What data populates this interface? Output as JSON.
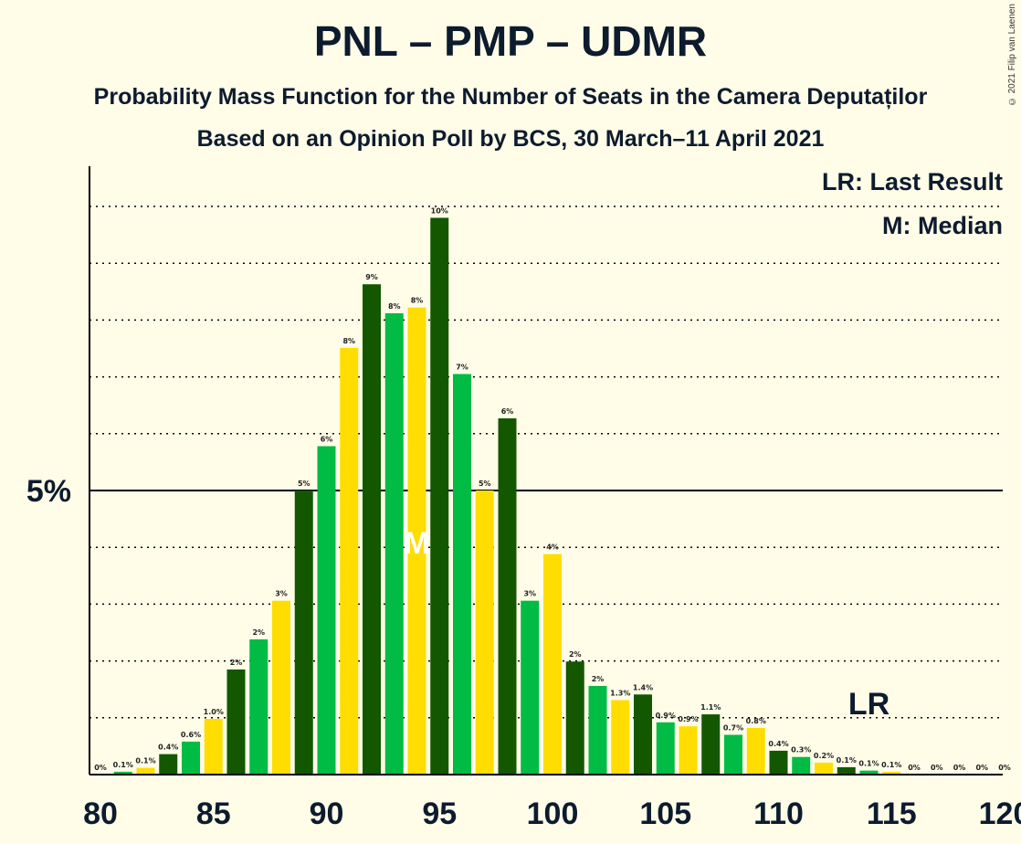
{
  "title": "PNL – PMP – UDMR",
  "subtitle": "Probability Mass Function for the Number of Seats in the Camera Deputaților",
  "subtitle2": "Based on an Opinion Poll by BCS, 30 March–11 April 2021",
  "copyright": "© 2021 Filip van Laenen",
  "legend": {
    "last_result": "LR: Last Result",
    "median": "M: Median"
  },
  "markers": {
    "median_label": "M",
    "median_seat": 94,
    "last_result_label": "LR",
    "last_result_seat": 114
  },
  "colors": {
    "dark_green": "#135800",
    "green": "#00BB44",
    "yellow": "#FFDD00"
  },
  "chart_data": {
    "type": "bar",
    "title": "PNL – PMP – UDMR",
    "xlabel": "",
    "ylabel": "",
    "x_ticks": [
      80,
      85,
      90,
      95,
      100,
      105,
      110,
      115,
      120
    ],
    "y_ticks": [
      "5%"
    ],
    "xlim": [
      80,
      120
    ],
    "ylim": [
      0,
      10.6
    ],
    "grid": "dotted horizontal lines every 1%, solid line at 5%",
    "categories": [
      80,
      81,
      82,
      83,
      84,
      85,
      86,
      87,
      88,
      89,
      90,
      91,
      92,
      93,
      94,
      95,
      96,
      97,
      98,
      99,
      100,
      101,
      102,
      103,
      104,
      105,
      106,
      107,
      108,
      109,
      110,
      111,
      112,
      113,
      114,
      115,
      116,
      117,
      118,
      119,
      120
    ],
    "values": [
      0,
      0.05,
      0.12,
      0.36,
      0.58,
      0.98,
      1.85,
      2.38,
      3.06,
      5.0,
      5.78,
      7.51,
      8.63,
      8.12,
      8.22,
      9.8,
      7.05,
      5.0,
      6.27,
      3.06,
      3.88,
      1.99,
      1.56,
      1.31,
      1.41,
      0.92,
      0.85,
      1.06,
      0.7,
      0.82,
      0.42,
      0.31,
      0.21,
      0.13,
      0.07,
      0.05,
      0,
      0,
      0,
      0,
      0
    ],
    "labels": [
      "0%",
      "0.1%",
      "0.1%",
      "0.4%",
      "0.6%",
      "1.0%",
      "2%",
      "2%",
      "3%",
      "5%",
      "6%",
      "8%",
      "9%",
      "8%",
      "8%",
      "10%",
      "7%",
      "5%",
      "6%",
      "3%",
      "4%",
      "2%",
      "2%",
      "1.3%",
      "1.4%",
      "0.9%",
      "0.9%",
      "1.1%",
      "0.7%",
      "0.8%",
      "0.4%",
      "0.3%",
      "0.2%",
      "0.1%",
      "0.1%",
      "0.1%",
      "0%",
      "0%",
      "0%",
      "0%",
      "0%"
    ]
  }
}
